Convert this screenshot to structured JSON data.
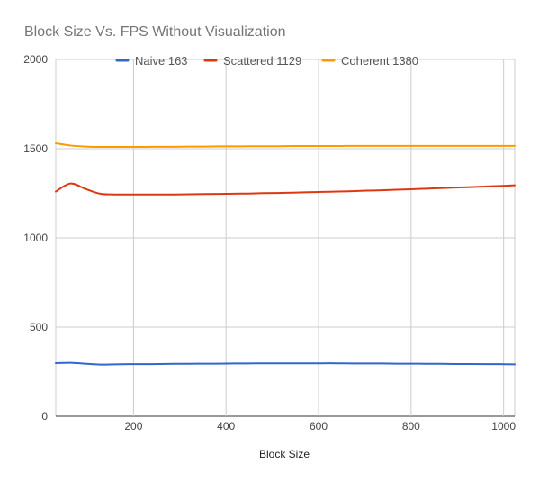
{
  "chart_data": {
    "type": "line",
    "title": "Block Size Vs. FPS Without Visualization",
    "xlabel": "Block Size",
    "ylabel": "",
    "xlim": [
      32,
      1024
    ],
    "ylim": [
      0,
      2000
    ],
    "xticks": [
      200,
      400,
      600,
      800,
      1000
    ],
    "yticks": [
      0,
      500,
      1000,
      1500,
      2000
    ],
    "grid": true,
    "legend_position": "top",
    "x": [
      32,
      64,
      96,
      128,
      160,
      192,
      224,
      256,
      288,
      320,
      352,
      384,
      416,
      448,
      480,
      512,
      544,
      576,
      608,
      640,
      672,
      704,
      736,
      768,
      800,
      832,
      864,
      896,
      928,
      960,
      992,
      1024
    ],
    "series": [
      {
        "name": "Naive 163",
        "color": "#3366cc",
        "values": [
          298,
          300,
          295,
          290,
          291,
          292,
          292,
          293,
          294,
          294,
          295,
          295,
          296,
          296,
          297,
          297,
          297,
          297,
          297,
          297,
          296,
          296,
          296,
          295,
          295,
          294,
          294,
          293,
          293,
          292,
          292,
          291
        ]
      },
      {
        "name": "Scattered 1129",
        "color": "#dc3912",
        "values": [
          1260,
          1305,
          1275,
          1248,
          1244,
          1244,
          1244,
          1244,
          1244,
          1245,
          1246,
          1247,
          1248,
          1249,
          1251,
          1252,
          1254,
          1256,
          1258,
          1260,
          1262,
          1265,
          1267,
          1270,
          1273,
          1276,
          1279,
          1282,
          1285,
          1288,
          1291,
          1295
        ]
      },
      {
        "name": "Coherent 1380",
        "color": "#ff9900",
        "values": [
          1530,
          1518,
          1512,
          1510,
          1510,
          1510,
          1510,
          1511,
          1511,
          1512,
          1512,
          1513,
          1513,
          1514,
          1514,
          1514,
          1515,
          1515,
          1515,
          1515,
          1516,
          1516,
          1516,
          1516,
          1516,
          1516,
          1516,
          1516,
          1516,
          1516,
          1516,
          1516
        ]
      }
    ]
  }
}
